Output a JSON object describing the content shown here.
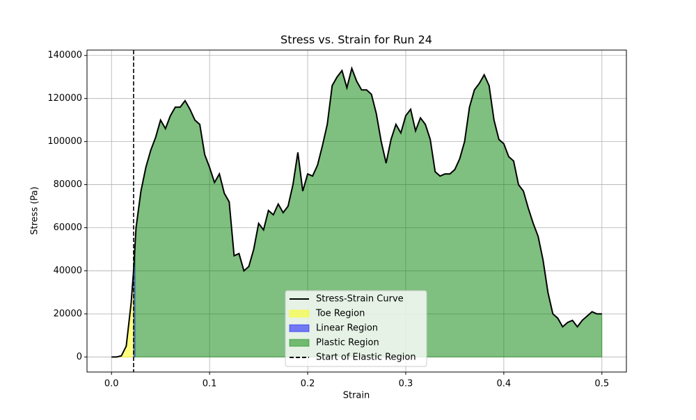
{
  "chart_data": {
    "type": "area-regions",
    "title": "Stress vs. Strain for Run 24",
    "x_label": "Strain",
    "y_label": "Stress (Pa)",
    "x": [
      0,
      0.005,
      0.01,
      0.015,
      0.02,
      0.0225,
      0.025,
      0.03,
      0.035,
      0.04,
      0.045,
      0.05,
      0.055,
      0.06,
      0.065,
      0.07,
      0.075,
      0.08,
      0.085,
      0.09,
      0.095,
      0.1,
      0.105,
      0.11,
      0.115,
      0.12,
      0.125,
      0.13,
      0.135,
      0.14,
      0.145,
      0.15,
      0.155,
      0.16,
      0.165,
      0.17,
      0.175,
      0.18,
      0.185,
      0.19,
      0.195,
      0.2,
      0.205,
      0.21,
      0.215,
      0.22,
      0.225,
      0.23,
      0.235,
      0.24,
      0.245,
      0.25,
      0.255,
      0.26,
      0.265,
      0.27,
      0.275,
      0.28,
      0.285,
      0.29,
      0.295,
      0.3,
      0.305,
      0.31,
      0.315,
      0.32,
      0.325,
      0.33,
      0.335,
      0.34,
      0.345,
      0.35,
      0.355,
      0.36,
      0.365,
      0.37,
      0.375,
      0.38,
      0.385,
      0.39,
      0.395,
      0.4,
      0.405,
      0.41,
      0.415,
      0.42,
      0.425,
      0.43,
      0.435,
      0.44,
      0.445,
      0.45,
      0.455,
      0.46,
      0.465,
      0.47,
      0.475,
      0.48,
      0.485,
      0.49,
      0.495,
      0.5
    ],
    "series": [
      {
        "name": "Stress-Strain Curve",
        "color": "#000000",
        "values": [
          0,
          0,
          500,
          5000,
          25000,
          40000,
          60000,
          77000,
          88000,
          96000,
          102000,
          110000,
          106000,
          112000,
          116000,
          116000,
          119000,
          115000,
          110000,
          108000,
          94000,
          88000,
          81000,
          85000,
          76000,
          72000,
          47000,
          48000,
          40000,
          42000,
          50000,
          62000,
          59000,
          68000,
          66000,
          71000,
          67000,
          70000,
          80000,
          95000,
          77000,
          85000,
          84000,
          89000,
          98000,
          108000,
          126000,
          130000,
          133000,
          125000,
          134000,
          128000,
          124000,
          124000,
          122000,
          113000,
          100000,
          90000,
          101000,
          108000,
          104000,
          112000,
          115000,
          105000,
          111000,
          108000,
          101000,
          86000,
          84000,
          85000,
          85000,
          87000,
          92000,
          100000,
          116000,
          124000,
          127000,
          131000,
          126000,
          110000,
          101000,
          99000,
          93000,
          91000,
          80000,
          77000,
          69000,
          62000,
          56000,
          45000,
          30000,
          20000,
          18000,
          14000,
          16000,
          17000,
          14000,
          17000,
          19000,
          21000,
          20000,
          20000
        ]
      }
    ],
    "regions": [
      {
        "name": "Toe Region",
        "color": "#ffff00",
        "x_range": [
          0,
          0.0225
        ]
      },
      {
        "name": "Linear Region",
        "color": "#0000ff",
        "x_range": [
          0.0225,
          0.024
        ]
      },
      {
        "name": "Plastic Region",
        "color": "#008000",
        "x_range": [
          0.024,
          0.5
        ]
      }
    ],
    "elastic_start": {
      "name": "Start of Elastic Region",
      "x": 0.0225
    },
    "xlim": [
      -0.025,
      0.525
    ],
    "ylim": [
      -7000,
      142500
    ],
    "xticks": [
      {
        "value": 0,
        "label": "0.0"
      },
      0.1,
      0.2,
      0.3,
      0.4,
      0.5
    ],
    "yticks": [
      0,
      20000,
      40000,
      60000,
      80000,
      100000,
      120000,
      140000
    ],
    "grid": true,
    "legend": "lower center"
  }
}
